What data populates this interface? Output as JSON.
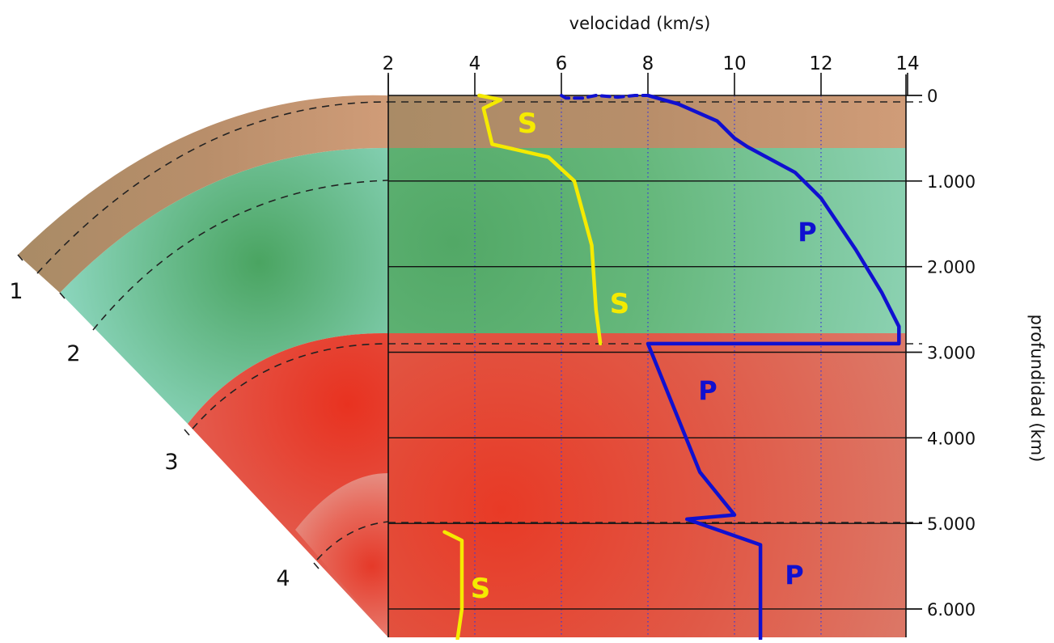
{
  "axes": {
    "top_title": "velocidad (km/s)",
    "right_title": "profundidad (km)",
    "top_ticks": [
      "2",
      "4",
      "6",
      "8",
      "10",
      "12",
      "14"
    ],
    "top_tick_values": [
      2,
      4,
      6,
      8,
      10,
      12,
      14
    ],
    "right_ticks": [
      "0",
      "1.000",
      "2.000",
      "3.000",
      "4.000",
      "5.000",
      "6.000"
    ],
    "right_tick_values": [
      0,
      1000,
      2000,
      3000,
      4000,
      5000,
      6000
    ]
  },
  "layer_numbers": [
    "1",
    "2",
    "3",
    "4"
  ],
  "wave_labels": {
    "s_crust": "S",
    "s_mantle": "S",
    "s_inner": "S",
    "p_mantle": "P",
    "p_outer": "P",
    "p_inner": "P"
  },
  "colors": {
    "crust": "#c49270",
    "mantle": "#8fd8c2",
    "mantle_glow": "#4aa461",
    "core": "#e0756a",
    "core_glow": "#e83020",
    "s_wave": "#f5ea00",
    "p_wave": "#1010d0"
  },
  "s_wave_crust_mantle": [
    [
      4.1,
      0
    ],
    [
      4.6,
      50
    ],
    [
      4.2,
      150
    ],
    [
      4.4,
      570
    ],
    [
      5.7,
      720
    ],
    [
      6.3,
      1000
    ],
    [
      6.7,
      1750
    ],
    [
      6.8,
      2500
    ],
    [
      6.9,
      2900
    ]
  ],
  "s_wave_inner": [
    [
      3.3,
      5100
    ],
    [
      3.7,
      5200
    ],
    [
      3.7,
      6000
    ],
    [
      3.6,
      6350
    ]
  ],
  "p_wave_dashed": [
    [
      6.0,
      0
    ],
    [
      6.1,
      30
    ],
    [
      6.5,
      30
    ],
    [
      6.8,
      0
    ],
    [
      7.3,
      20
    ],
    [
      7.7,
      0
    ],
    [
      8.0,
      0
    ]
  ],
  "p_wave_solid": [
    [
      8.0,
      0
    ],
    [
      8.7,
      100
    ],
    [
      9.6,
      300
    ],
    [
      10.0,
      500
    ],
    [
      10.3,
      600
    ],
    [
      11.4,
      900
    ],
    [
      12.0,
      1200
    ],
    [
      12.8,
      1800
    ],
    [
      13.4,
      2300
    ],
    [
      13.8,
      2700
    ],
    [
      13.8,
      2900
    ],
    [
      8.0,
      2900
    ],
    [
      9.2,
      4400
    ],
    [
      10.0,
      4900
    ],
    [
      8.9,
      4950
    ],
    [
      10.6,
      5250
    ],
    [
      10.6,
      6350
    ]
  ]
}
